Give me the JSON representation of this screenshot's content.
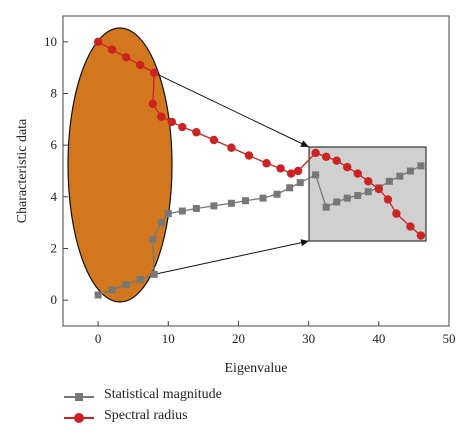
{
  "chart_data": {
    "type": "line",
    "xlabel": "Eigenvalue",
    "ylabel": "Characteristic data",
    "xlim": [
      -5,
      50
    ],
    "ylim": [
      -1,
      11
    ],
    "xticks": [
      0,
      10,
      20,
      30,
      40,
      50
    ],
    "yticks": [
      0,
      2,
      4,
      6,
      8,
      10
    ],
    "legend_position": "bottom-left",
    "series": [
      {
        "name": "Statistical magnitude",
        "marker": "square",
        "color": "#777777",
        "points": [
          [
            0,
            0.2
          ],
          [
            2,
            0.4
          ],
          [
            4,
            0.6
          ],
          [
            6,
            0.8
          ],
          [
            8,
            1.0
          ],
          [
            7.8,
            2.35
          ],
          [
            9,
            3.0
          ],
          [
            10,
            3.35
          ],
          [
            12,
            3.45
          ],
          [
            14,
            3.55
          ],
          [
            16.5,
            3.65
          ],
          [
            19,
            3.75
          ],
          [
            21,
            3.85
          ],
          [
            23.5,
            3.95
          ],
          [
            25.5,
            4.1
          ],
          [
            27.3,
            4.35
          ],
          [
            28.8,
            4.55
          ],
          [
            31,
            4.85
          ],
          [
            32.5,
            3.6
          ],
          [
            34,
            3.8
          ],
          [
            35.5,
            3.95
          ],
          [
            37,
            4.05
          ],
          [
            38.5,
            4.2
          ],
          [
            40,
            4.35
          ],
          [
            41.5,
            4.6
          ],
          [
            43,
            4.8
          ],
          [
            44.5,
            5.0
          ],
          [
            46,
            5.2
          ]
        ]
      },
      {
        "name": "Spectral radius",
        "marker": "circle",
        "color": "#cc2222",
        "points": [
          [
            0,
            10.0
          ],
          [
            2,
            9.7
          ],
          [
            4,
            9.4
          ],
          [
            6,
            9.1
          ],
          [
            8,
            8.8
          ],
          [
            7.8,
            7.6
          ],
          [
            9,
            7.1
          ],
          [
            10.5,
            6.9
          ],
          [
            12,
            6.7
          ],
          [
            14,
            6.5
          ],
          [
            16.5,
            6.2
          ],
          [
            19,
            5.9
          ],
          [
            21.5,
            5.6
          ],
          [
            24,
            5.3
          ],
          [
            26,
            5.1
          ],
          [
            27.5,
            4.9
          ],
          [
            28.5,
            5.0
          ],
          [
            31,
            5.7
          ],
          [
            32.5,
            5.55
          ],
          [
            34,
            5.4
          ],
          [
            35.5,
            5.15
          ],
          [
            37,
            4.9
          ],
          [
            38.5,
            4.6
          ],
          [
            40,
            4.3
          ],
          [
            41.3,
            3.9
          ],
          [
            42.5,
            3.35
          ],
          [
            44.5,
            2.85
          ],
          [
            46,
            2.5
          ]
        ]
      }
    ],
    "annotations": {
      "ellipse": {
        "fill": "#d2771e",
        "stroke": "#111111"
      },
      "zoom_box": {
        "fill": "#d0d0d0",
        "stroke": "#111111"
      }
    }
  }
}
